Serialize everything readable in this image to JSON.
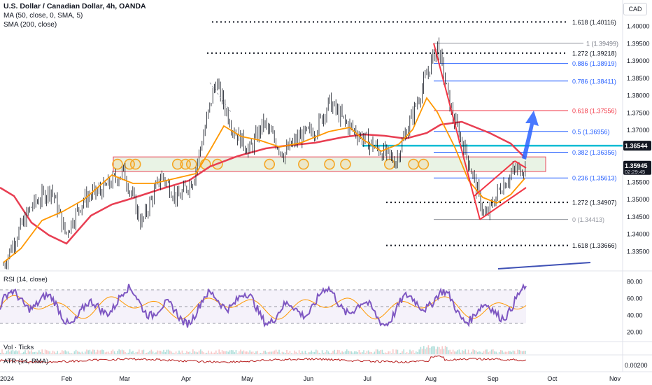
{
  "header": {
    "symbol_line": "U.S. Dollar / Canadian Dollar, 4h, OANDA",
    "ma_label": "MA (50, close, 0, SMA, 5)",
    "sma_label": "SMA (200, close)",
    "currency_button": "CAD"
  },
  "panes": {
    "rsi_label": "RSI (14, close)",
    "vol_label": "Vol · Ticks",
    "atr_label": "ATR (14, RMA)"
  },
  "colors": {
    "price": "#131722",
    "ma50": "#ff9800",
    "sma200": "#e83e52",
    "fib_blue": "#2962ff",
    "fib_red": "#f23645",
    "support_zone": "#e8f3e4",
    "resistance_line": "#00bcd4",
    "rsi": "#7e57c2",
    "circle": "#f5a623"
  },
  "chart_data": {
    "type": "candlestick",
    "title": "U.S. Dollar / Canadian Dollar, 4h, OANDA",
    "price_axis": {
      "range": [
        1.3295,
        1.4075
      ],
      "ticks": [
        "1.40000",
        "1.39500",
        "1.39000",
        "1.38500",
        "1.38000",
        "1.37500",
        "1.37000",
        "1.36500",
        "1.36000",
        "1.35500",
        "1.35000",
        "1.34500",
        "1.34000",
        "1.33500"
      ]
    },
    "time_axis": {
      "labels": [
        "2024",
        "Feb",
        "Mar",
        "Apr",
        "May",
        "Jun",
        "Jul",
        "Aug",
        "Sep",
        "Oct",
        "Nov"
      ]
    },
    "price_path": [
      {
        "x": "2024-01-01",
        "y": 1.331
      },
      {
        "x": "2024-01-08",
        "y": 1.34
      },
      {
        "x": "2024-01-15",
        "y": 1.348
      },
      {
        "x": "2024-01-25",
        "y": 1.353
      },
      {
        "x": "2024-02-01",
        "y": 1.34
      },
      {
        "x": "2024-02-10",
        "y": 1.35
      },
      {
        "x": "2024-02-20",
        "y": 1.353
      },
      {
        "x": "2024-03-01",
        "y": 1.358
      },
      {
        "x": "2024-03-10",
        "y": 1.343
      },
      {
        "x": "2024-03-20",
        "y": 1.357
      },
      {
        "x": "2024-03-28",
        "y": 1.35
      },
      {
        "x": "2024-04-05",
        "y": 1.356
      },
      {
        "x": "2024-04-16",
        "y": 1.384
      },
      {
        "x": "2024-04-25",
        "y": 1.37
      },
      {
        "x": "2024-05-03",
        "y": 1.364
      },
      {
        "x": "2024-05-10",
        "y": 1.372
      },
      {
        "x": "2024-05-20",
        "y": 1.363
      },
      {
        "x": "2024-05-28",
        "y": 1.368
      },
      {
        "x": "2024-06-05",
        "y": 1.37
      },
      {
        "x": "2024-06-12",
        "y": 1.378
      },
      {
        "x": "2024-06-20",
        "y": 1.372
      },
      {
        "x": "2024-06-28",
        "y": 1.368
      },
      {
        "x": "2024-07-05",
        "y": 1.365
      },
      {
        "x": "2024-07-15",
        "y": 1.361
      },
      {
        "x": "2024-07-22",
        "y": 1.372
      },
      {
        "x": "2024-08-01",
        "y": 1.388
      },
      {
        "x": "2024-08-05",
        "y": 1.3946
      },
      {
        "x": "2024-08-12",
        "y": 1.375
      },
      {
        "x": "2024-08-20",
        "y": 1.362
      },
      {
        "x": "2024-08-26",
        "y": 1.35
      },
      {
        "x": "2024-08-29",
        "y": 1.3445
      },
      {
        "x": "2024-09-05",
        "y": 1.353
      },
      {
        "x": "2024-09-12",
        "y": 1.358
      },
      {
        "x": "2024-09-18",
        "y": 1.3594
      }
    ],
    "last_price": "1.35945",
    "countdown": "02:29:45",
    "price_labels": [
      {
        "label": "1.36544",
        "value": 1.36544,
        "style": "dark"
      }
    ],
    "fib_top": [
      {
        "label": "1.618 (1.40116)",
        "value": 1.40116,
        "style": "dotted"
      },
      {
        "label": "1.272 (1.39218)",
        "value": 1.39218,
        "style": "dotted"
      },
      {
        "label": "1 (1.39499)",
        "value": 1.39499,
        "style": "gray"
      }
    ],
    "fib_retracement": [
      {
        "label": "0.886 (1.38919)",
        "value": 1.38919,
        "color": "blue"
      },
      {
        "label": "0.786 (1.38411)",
        "value": 1.38411,
        "color": "blue"
      },
      {
        "label": "0.618 (1.37556)",
        "value": 1.37556,
        "color": "red"
      },
      {
        "label": "0.5 (1.36956)",
        "value": 1.36956,
        "color": "blue"
      },
      {
        "label": "0.382 (1.36356)",
        "value": 1.36356,
        "color": "blue"
      },
      {
        "label": "0.236 (1.35613)",
        "value": 1.35613,
        "color": "blue"
      },
      {
        "label": "0 (1.34413)",
        "value": 1.34413,
        "color": "gray"
      }
    ],
    "fib_bottom": [
      {
        "label": "1.272 (1.34907)",
        "value": 1.34907,
        "style": "dotted"
      },
      {
        "label": "1.618 (1.33666)",
        "value": 1.33666,
        "style": "dotted"
      }
    ],
    "support_zone": {
      "from": 1.3592,
      "to": 1.3618
    },
    "rsi": {
      "range": [
        10,
        90
      ],
      "ticks": [
        "80.00",
        "60.00",
        "40.00",
        "20.00"
      ],
      "bands": [
        70,
        30
      ]
    },
    "atr": {
      "last": "0.00200",
      "tick": "0.00200"
    }
  }
}
